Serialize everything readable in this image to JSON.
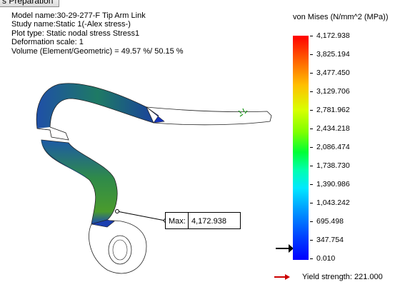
{
  "tab": {
    "label": "s Preparation"
  },
  "plot_info": {
    "model_name": "Model name:30-29-277-F Tip Arm Link",
    "study_name": "Study name:Static 1(-Alex stress-)",
    "plot_type": "Plot type: Static nodal stress Stress1",
    "deformation_scale": "Deformation scale: 1",
    "volume": "Volume (Element/Geometric) = 49.57 %/ 50.15 %"
  },
  "legend": {
    "title": "von Mises (N/mm^2 (MPa))",
    "ticks": [
      "4,172.938",
      "3,825.194",
      "3,477.450",
      "3,129.706",
      "2,781.962",
      "2,434.218",
      "2,086.474",
      "1,738.730",
      "1,390.986",
      "1,043.242",
      "695.498",
      "347.754",
      "0.010"
    ],
    "max_value": 4172.938,
    "min_value": 0.01,
    "yield_value": 221.0,
    "yield_label": "Yield strength: 221.000",
    "colors": {
      "high": "#ff0000",
      "mid": "#00ff35",
      "low": "#0000ff",
      "arrow": "#cc0000"
    }
  },
  "max_probe": {
    "label": "Max:",
    "value": "4,172.938"
  }
}
